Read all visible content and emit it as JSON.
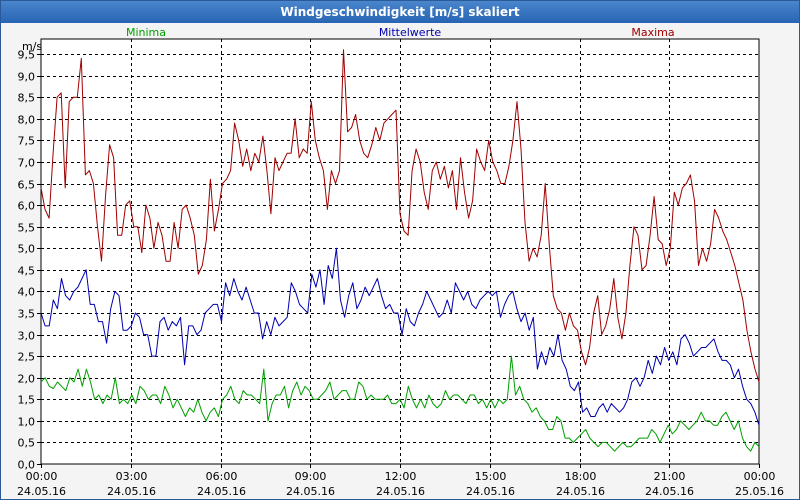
{
  "window": {
    "title": "Windgeschwindigkeit [m/s] skaliert"
  },
  "chart_data": {
    "type": "line",
    "title": "Windgeschwindigkeit [m/s] skaliert",
    "ylabel": "m/s",
    "ylim": [
      0,
      9.85
    ],
    "xlim": [
      0,
      24
    ],
    "grid": true,
    "y_ticks": [
      {
        "value": 0.0,
        "label": "0,0"
      },
      {
        "value": 0.5,
        "label": "0,5"
      },
      {
        "value": 1.0,
        "label": "1,0"
      },
      {
        "value": 1.5,
        "label": "1,5"
      },
      {
        "value": 2.0,
        "label": "2,0"
      },
      {
        "value": 2.5,
        "label": "2,5"
      },
      {
        "value": 3.0,
        "label": "3,0"
      },
      {
        "value": 3.5,
        "label": "3,5"
      },
      {
        "value": 4.0,
        "label": "4,0"
      },
      {
        "value": 4.5,
        "label": "4,5"
      },
      {
        "value": 5.0,
        "label": "5,0"
      },
      {
        "value": 5.5,
        "label": "5,5"
      },
      {
        "value": 6.0,
        "label": "6,0"
      },
      {
        "value": 6.5,
        "label": "6,5"
      },
      {
        "value": 7.0,
        "label": "7,0"
      },
      {
        "value": 7.5,
        "label": "7,5"
      },
      {
        "value": 8.0,
        "label": "8,0"
      },
      {
        "value": 8.5,
        "label": "8,5"
      },
      {
        "value": 9.0,
        "label": "9,0"
      },
      {
        "value": 9.5,
        "label": "9,5"
      }
    ],
    "x_ticks": [
      {
        "value": 0,
        "time": "00:00",
        "date": "24.05.16"
      },
      {
        "value": 3,
        "time": "03:00",
        "date": "24.05.16"
      },
      {
        "value": 6,
        "time": "06:00",
        "date": "24.05.16"
      },
      {
        "value": 9,
        "time": "09:00",
        "date": "24.05.16"
      },
      {
        "value": 12,
        "time": "12:00",
        "date": "24.05.16"
      },
      {
        "value": 15,
        "time": "15:00",
        "date": "24.05.16"
      },
      {
        "value": 18,
        "time": "18:00",
        "date": "24.05.16"
      },
      {
        "value": 21,
        "time": "21:00",
        "date": "24.05.16"
      },
      {
        "value": 24,
        "time": "00:00",
        "date": "25.05.16"
      }
    ],
    "x_step_hours": 0.1667,
    "series": [
      {
        "name": "Minima",
        "color": "#00a000",
        "legend_anchor": "left",
        "values": [
          1.9,
          2.0,
          1.8,
          1.75,
          1.9,
          1.8,
          1.7,
          2.0,
          1.9,
          2.2,
          1.8,
          2.2,
          1.9,
          1.5,
          1.6,
          1.4,
          1.6,
          1.5,
          2.0,
          1.4,
          1.5,
          1.4,
          1.6,
          1.4,
          1.8,
          1.7,
          1.5,
          1.6,
          1.6,
          1.4,
          1.8,
          1.6,
          1.3,
          1.5,
          1.3,
          1.1,
          1.3,
          1.2,
          1.5,
          1.2,
          1.0,
          1.2,
          1.3,
          1.1,
          1.5,
          1.6,
          1.8,
          1.5,
          1.4,
          1.7,
          1.6,
          1.6,
          1.5,
          1.4,
          2.2,
          1.0,
          1.4,
          1.6,
          1.6,
          1.8,
          1.3,
          1.7,
          1.9,
          1.6,
          1.8,
          1.7,
          1.5,
          1.5,
          1.6,
          1.7,
          1.9,
          1.5,
          1.6,
          1.7,
          1.7,
          1.5,
          1.5,
          1.9,
          1.8,
          1.5,
          1.6,
          1.5,
          1.5,
          1.5,
          1.6,
          1.4,
          1.4,
          1.5,
          1.3,
          1.8,
          1.5,
          1.3,
          1.5,
          1.3,
          1.6,
          1.4,
          1.3,
          1.4,
          1.7,
          1.5,
          1.6,
          1.6,
          1.5,
          1.4,
          1.6,
          1.6,
          1.4,
          1.5,
          1.3,
          1.5,
          1.3,
          1.5,
          1.4,
          1.5,
          2.5,
          1.6,
          1.8,
          1.5,
          1.4,
          1.2,
          1.3,
          1.1,
          1.0,
          0.8,
          0.8,
          1.1,
          1.0,
          0.6,
          0.6,
          0.5,
          0.6,
          0.7,
          0.8,
          0.6,
          0.5,
          0.4,
          0.5,
          0.5,
          0.4,
          0.3,
          0.4,
          0.5,
          0.4,
          0.4,
          0.5,
          0.6,
          0.6,
          0.6,
          0.8,
          0.7,
          0.5,
          0.7,
          0.9,
          0.7,
          0.8,
          1.0,
          0.9,
          0.8,
          0.9,
          1.0,
          1.2,
          1.0,
          1.0,
          0.9,
          0.9,
          1.1,
          1.2,
          1.0,
          0.8,
          1.0,
          0.6,
          0.4,
          0.3,
          0.5,
          0.4
        ]
      },
      {
        "name": "Mittelwerte",
        "color": "#0000b0",
        "legend_anchor": "middle",
        "values": [
          3.5,
          3.2,
          3.2,
          3.8,
          3.6,
          4.3,
          3.9,
          3.8,
          4.0,
          4.1,
          4.3,
          4.5,
          3.7,
          3.7,
          3.3,
          3.3,
          2.8,
          3.6,
          4.0,
          3.9,
          3.1,
          3.1,
          3.2,
          3.5,
          3.4,
          3.0,
          3.0,
          2.5,
          2.5,
          3.3,
          3.4,
          3.1,
          3.3,
          3.2,
          3.4,
          2.3,
          3.2,
          3.2,
          3.0,
          3.1,
          3.5,
          3.6,
          3.7,
          3.7,
          3.3,
          4.2,
          3.9,
          4.3,
          4.0,
          3.8,
          4.1,
          3.8,
          3.5,
          3.5,
          2.9,
          3.3,
          3.0,
          3.4,
          3.2,
          3.3,
          3.4,
          4.2,
          4.0,
          3.7,
          3.6,
          3.5,
          4.4,
          4.1,
          4.5,
          3.7,
          4.6,
          4.3,
          5.0,
          3.8,
          3.4,
          3.9,
          4.2,
          3.6,
          3.8,
          4.1,
          3.9,
          4.1,
          4.3,
          3.9,
          3.6,
          3.7,
          3.5,
          3.5,
          3.0,
          3.6,
          3.3,
          3.2,
          3.5,
          3.7,
          4.0,
          3.8,
          3.6,
          3.4,
          3.5,
          3.8,
          3.5,
          4.2,
          4.0,
          3.8,
          4.0,
          3.7,
          3.6,
          3.8,
          3.9,
          4.0,
          3.9,
          4.0,
          3.4,
          3.7,
          3.9,
          4.0,
          3.6,
          3.3,
          3.5,
          3.1,
          3.4,
          2.2,
          2.6,
          2.3,
          2.7,
          2.5,
          3.0,
          2.4,
          2.2,
          1.8,
          1.7,
          1.9,
          1.2,
          1.3,
          1.1,
          1.1,
          1.3,
          1.4,
          1.2,
          1.4,
          1.3,
          1.2,
          1.3,
          1.5,
          1.9,
          2.0,
          1.8,
          2.0,
          2.4,
          2.1,
          2.5,
          2.3,
          2.7,
          2.4,
          2.6,
          2.3,
          2.9,
          3.0,
          2.8,
          2.5,
          2.6,
          2.7,
          2.7,
          2.8,
          2.9,
          2.6,
          2.4,
          2.4,
          2.3,
          2.0,
          2.2,
          1.8,
          1.5,
          1.4,
          1.2,
          0.9
        ]
      },
      {
        "name": "Maxima",
        "color": "#a00000",
        "legend_anchor": "right",
        "values": [
          6.4,
          5.9,
          5.7,
          7.2,
          8.5,
          8.6,
          6.4,
          8.4,
          8.5,
          8.5,
          9.4,
          6.7,
          6.8,
          6.5,
          5.5,
          4.7,
          6.2,
          7.4,
          7.1,
          5.3,
          5.3,
          6.0,
          6.1,
          5.5,
          5.5,
          4.9,
          6.0,
          5.7,
          5.0,
          5.6,
          5.3,
          4.7,
          4.7,
          5.6,
          5.0,
          5.9,
          6.0,
          5.7,
          5.3,
          4.4,
          4.6,
          5.2,
          6.6,
          5.4,
          5.9,
          6.5,
          6.6,
          6.8,
          7.9,
          7.5,
          6.9,
          7.3,
          6.8,
          7.2,
          7.0,
          7.6,
          6.8,
          5.8,
          7.1,
          6.8,
          7.0,
          7.2,
          7.2,
          8.0,
          7.1,
          7.3,
          7.2,
          8.4,
          7.5,
          7.1,
          6.8,
          5.9,
          6.8,
          6.5,
          6.8,
          9.6,
          7.7,
          7.8,
          8.1,
          7.5,
          7.2,
          7.1,
          7.4,
          7.8,
          7.5,
          7.9,
          8.0,
          8.1,
          8.2,
          5.8,
          5.4,
          5.3,
          6.8,
          7.3,
          7.0,
          6.3,
          5.9,
          6.8,
          7.0,
          6.6,
          6.9,
          6.4,
          6.8,
          5.9,
          7.1,
          6.3,
          5.7,
          6.1,
          7.3,
          7.0,
          6.8,
          7.5,
          7.0,
          6.8,
          6.5,
          6.5,
          6.9,
          7.5,
          8.4,
          7.3,
          5.6,
          4.7,
          5.0,
          4.8,
          5.3,
          6.5,
          5.1,
          3.9,
          3.6,
          3.5,
          3.1,
          3.5,
          3.2,
          3.1,
          2.6,
          2.3,
          2.7,
          3.5,
          3.9,
          3.0,
          3.2,
          3.6,
          4.3,
          3.4,
          2.9,
          3.5,
          4.6,
          5.5,
          5.3,
          4.5,
          4.6,
          5.3,
          6.2,
          5.2,
          5.1,
          4.6,
          5.0,
          6.3,
          6.0,
          6.4,
          6.5,
          6.7,
          6.1,
          4.6,
          5.0,
          4.7,
          5.1,
          5.9,
          5.7,
          5.4,
          5.2,
          4.9,
          4.6,
          4.2,
          3.8,
          3.1,
          2.6,
          2.2,
          1.9
        ]
      }
    ]
  }
}
